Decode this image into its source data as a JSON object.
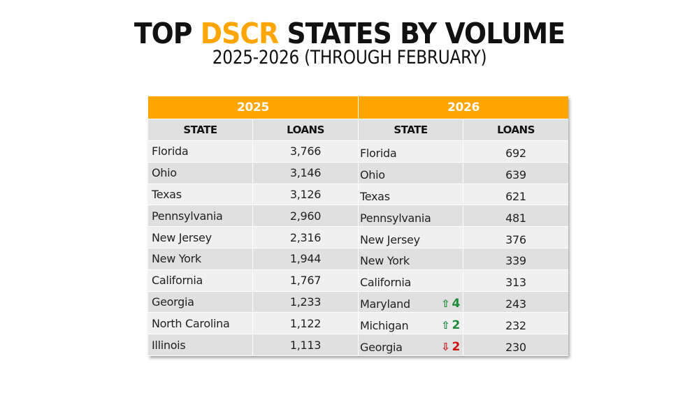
{
  "header": {
    "title_prefix": "TOP",
    "title_accent": "DSCR",
    "title_suffix": "STATES BY VOLUME",
    "subtitle": "2025-2026 (THROUGH FEBRUARY)",
    "accent_color": "#FFA500"
  },
  "tables": [
    {
      "year": "2025",
      "columns": [
        "STATE",
        "LOANS"
      ],
      "rows": [
        {
          "state": "Florida",
          "loans": "3,766"
        },
        {
          "state": "Ohio",
          "loans": "3,146"
        },
        {
          "state": "Texas",
          "loans": "3,126"
        },
        {
          "state": "Pennsylvania",
          "loans": "2,960"
        },
        {
          "state": "New Jersey",
          "loans": "2,316"
        },
        {
          "state": "New York",
          "loans": "1,944"
        },
        {
          "state": "California",
          "loans": "1,767"
        },
        {
          "state": "Georgia",
          "loans": "1,233"
        },
        {
          "state": "North Carolina",
          "loans": "1,122"
        },
        {
          "state": "Illinois",
          "loans": "1,113"
        }
      ]
    },
    {
      "year": "2026",
      "columns": [
        "STATE",
        "LOANS"
      ],
      "rows": [
        {
          "state": "Florida",
          "loans": "692"
        },
        {
          "state": "Ohio",
          "loans": "639"
        },
        {
          "state": "Texas",
          "loans": "621"
        },
        {
          "state": "Pennsylvania",
          "loans": "481"
        },
        {
          "state": "New Jersey",
          "loans": "376"
        },
        {
          "state": "New York",
          "loans": "339"
        },
        {
          "state": "California",
          "loans": "313"
        },
        {
          "state": "Maryland",
          "loans": "243",
          "change": {
            "direction": "up",
            "icon": "arrow-up-icon",
            "glyph": "⇧",
            "value": "4",
            "color": "#1E8C3A"
          }
        },
        {
          "state": "Michigan",
          "loans": "232",
          "change": {
            "direction": "up",
            "icon": "arrow-up-icon",
            "glyph": "⇧",
            "value": "2",
            "color": "#1E8C3A"
          }
        },
        {
          "state": "Georgia",
          "loans": "230",
          "change": {
            "direction": "down",
            "icon": "arrow-down-icon",
            "glyph": "⇩",
            "value": "2",
            "color": "#CC1111"
          }
        }
      ]
    }
  ]
}
